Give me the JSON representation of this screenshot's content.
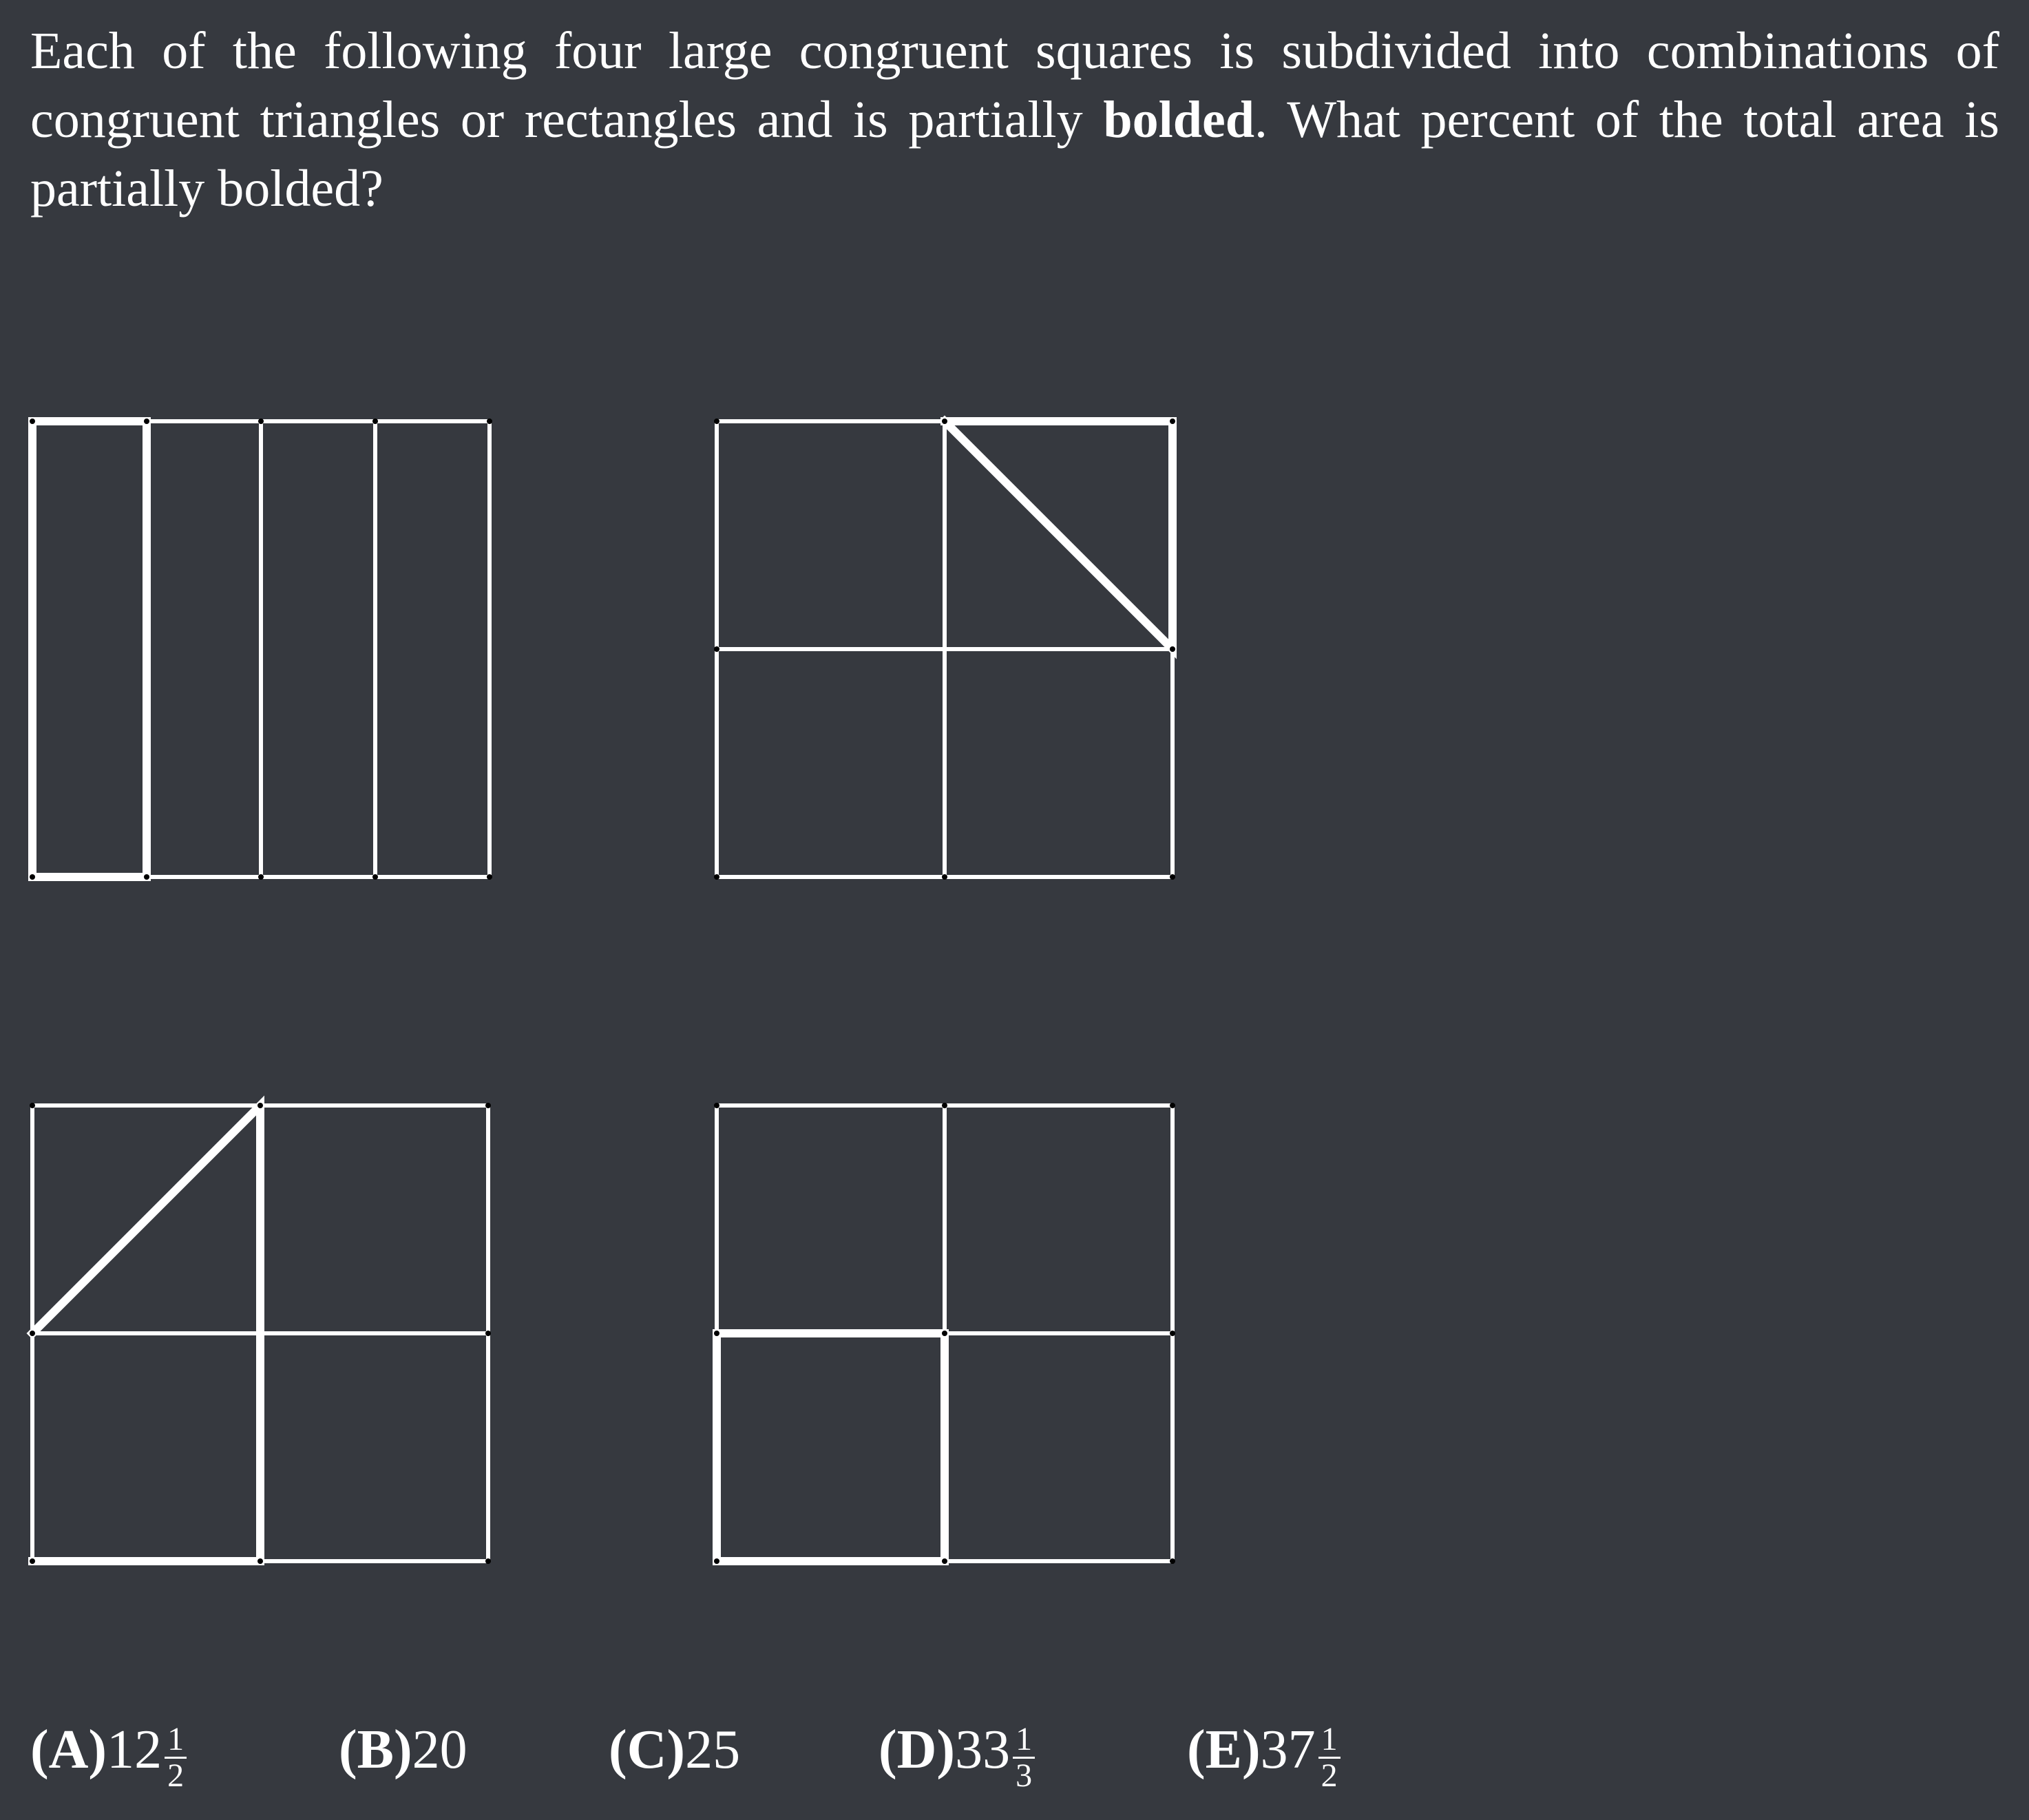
{
  "problem": {
    "text_part1": "Each of the following four large congruent squares is subdivided into combi­nations of congruent triangles or rectangles and is partially ",
    "bold_word": "bolded",
    "text_part2": ".  What percent of the total area is partially bolded?"
  },
  "figures": [
    {
      "name": "vertical-strips-square",
      "divisions": "4 vertical strips",
      "bolded": "leftmost strip"
    },
    {
      "name": "top-right-triangle-square",
      "divisions": "2x2 grid with diagonal",
      "bolded": "triangle in top-right quadrant"
    },
    {
      "name": "left-triangle-square",
      "divisions": "2x2 grid with diagonal",
      "bolded": "triangle in top-left quadrant and bottom-left quadrant"
    },
    {
      "name": "bottom-left-quadrant-square",
      "divisions": "2x2 grid",
      "bolded": "bottom-left quadrant"
    }
  ],
  "choices": [
    {
      "label": "(A)",
      "whole": "12",
      "num": "1",
      "den": "2"
    },
    {
      "label": "(B)",
      "whole": "20",
      "num": "",
      "den": ""
    },
    {
      "label": "(C)",
      "whole": "25",
      "num": "",
      "den": ""
    },
    {
      "label": "(D)",
      "whole": "33",
      "num": "1",
      "den": "3"
    },
    {
      "label": "(E)",
      "whole": "37",
      "num": "1",
      "den": "2"
    }
  ],
  "colors": {
    "background": "#36393f",
    "ink": "#ffffff",
    "vertex": "#000000"
  }
}
